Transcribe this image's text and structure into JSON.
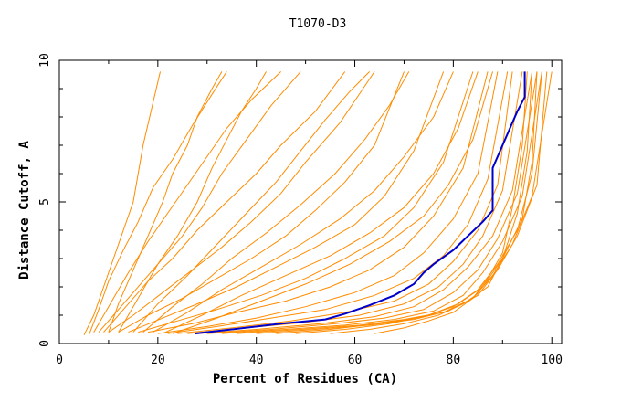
{
  "chart_data": {
    "type": "line",
    "title": "T1070-D3",
    "xlabel": "Percent of Residues (CA)",
    "ylabel": "Distance Cutoff, A",
    "xlim": [
      0,
      102
    ],
    "ylim": [
      0,
      10
    ],
    "x_ticks": [
      0,
      20,
      40,
      60,
      80,
      100
    ],
    "y_ticks": [
      0,
      5,
      10
    ],
    "grid": false,
    "legend": "none",
    "colors": {
      "models": "#ff8c00",
      "highlight": "#0000cc",
      "axes": "#000000"
    },
    "highlight_series": {
      "points": [
        [
          27.5,
          0.35
        ],
        [
          35,
          0.5
        ],
        [
          45,
          0.7
        ],
        [
          54,
          0.85
        ],
        [
          58,
          1.05
        ],
        [
          63,
          1.35
        ],
        [
          68,
          1.7
        ],
        [
          72,
          2.1
        ],
        [
          74,
          2.5
        ],
        [
          76,
          2.8
        ],
        [
          80,
          3.3
        ],
        [
          83,
          3.8
        ],
        [
          86,
          4.3
        ],
        [
          88,
          4.7
        ],
        [
          88,
          5.2
        ],
        [
          88,
          6.2
        ],
        [
          90,
          7.0
        ],
        [
          93,
          8.2
        ],
        [
          94.5,
          8.7
        ],
        [
          94.5,
          9.6
        ]
      ]
    },
    "model_series": [
      [
        [
          5,
          0.3
        ],
        [
          7,
          1.0
        ],
        [
          9,
          2.0
        ],
        [
          11,
          3.0
        ],
        [
          13,
          4.0
        ],
        [
          15,
          5.0
        ],
        [
          16,
          6.0
        ],
        [
          17,
          7.0
        ],
        [
          19,
          8.5
        ],
        [
          20.5,
          9.6
        ]
      ],
      [
        [
          6,
          0.3
        ],
        [
          8,
          1.2
        ],
        [
          10,
          2.2
        ],
        [
          13,
          3.3
        ],
        [
          16,
          4.3
        ],
        [
          19,
          5.5
        ],
        [
          23,
          6.5
        ],
        [
          27,
          7.7
        ],
        [
          31,
          8.8
        ],
        [
          34,
          9.6
        ]
      ],
      [
        [
          7,
          0.4
        ],
        [
          10,
          1.3
        ],
        [
          14,
          2.5
        ],
        [
          18,
          3.6
        ],
        [
          22,
          4.6
        ],
        [
          26,
          5.6
        ],
        [
          30,
          6.6
        ],
        [
          34,
          7.6
        ],
        [
          39,
          8.6
        ],
        [
          45,
          9.6
        ]
      ],
      [
        [
          8,
          0.4
        ],
        [
          11,
          1.0
        ],
        [
          15,
          1.8
        ],
        [
          20,
          2.8
        ],
        [
          25,
          3.8
        ],
        [
          29,
          4.8
        ],
        [
          33,
          6.0
        ],
        [
          38,
          7.2
        ],
        [
          43,
          8.4
        ],
        [
          49,
          9.6
        ]
      ],
      [
        [
          9,
          0.4
        ],
        [
          13,
          1.2
        ],
        [
          18,
          2.2
        ],
        [
          23,
          3.0
        ],
        [
          28,
          4.0
        ],
        [
          34,
          5.0
        ],
        [
          40,
          6.0
        ],
        [
          45,
          7.0
        ],
        [
          52,
          8.2
        ],
        [
          58,
          9.6
        ]
      ],
      [
        [
          10,
          0.4
        ],
        [
          15,
          1.0
        ],
        [
          21,
          1.8
        ],
        [
          27,
          2.6
        ],
        [
          33,
          3.4
        ],
        [
          39,
          4.3
        ],
        [
          45,
          5.3
        ],
        [
          50,
          6.4
        ],
        [
          57,
          7.8
        ],
        [
          64,
          9.6
        ]
      ],
      [
        [
          12,
          0.4
        ],
        [
          18,
          1.0
        ],
        [
          25,
          1.6
        ],
        [
          32,
          2.3
        ],
        [
          39,
          3.0
        ],
        [
          46,
          3.8
        ],
        [
          52,
          4.7
        ],
        [
          58,
          5.7
        ],
        [
          64,
          7.0
        ],
        [
          70,
          9.6
        ]
      ],
      [
        [
          14,
          0.4
        ],
        [
          21,
          0.9
        ],
        [
          28,
          1.4
        ],
        [
          36,
          2.0
        ],
        [
          44,
          2.7
        ],
        [
          52,
          3.4
        ],
        [
          60,
          4.2
        ],
        [
          66,
          5.2
        ],
        [
          72,
          6.8
        ],
        [
          78,
          9.6
        ]
      ],
      [
        [
          16,
          0.4
        ],
        [
          24,
          0.8
        ],
        [
          32,
          1.2
        ],
        [
          41,
          1.7
        ],
        [
          50,
          2.3
        ],
        [
          58,
          3.0
        ],
        [
          66,
          3.8
        ],
        [
          72,
          4.8
        ],
        [
          78,
          6.4
        ],
        [
          84,
          9.6
        ]
      ],
      [
        [
          18,
          0.4
        ],
        [
          27,
          0.7
        ],
        [
          36,
          1.1
        ],
        [
          46,
          1.5
        ],
        [
          55,
          2.0
        ],
        [
          63,
          2.6
        ],
        [
          70,
          3.4
        ],
        [
          76,
          4.5
        ],
        [
          82,
          6.2
        ],
        [
          87,
          9.6
        ]
      ],
      [
        [
          20,
          0.35
        ],
        [
          30,
          0.6
        ],
        [
          40,
          0.9
        ],
        [
          50,
          1.3
        ],
        [
          60,
          1.8
        ],
        [
          68,
          2.4
        ],
        [
          74,
          3.2
        ],
        [
          80,
          4.4
        ],
        [
          85,
          6.0
        ],
        [
          89,
          9.6
        ]
      ],
      [
        [
          22,
          0.35
        ],
        [
          32,
          0.6
        ],
        [
          43,
          0.9
        ],
        [
          54,
          1.2
        ],
        [
          64,
          1.7
        ],
        [
          72,
          2.3
        ],
        [
          78,
          3.1
        ],
        [
          83,
          4.2
        ],
        [
          87,
          5.8
        ],
        [
          91,
          9.6
        ]
      ],
      [
        [
          24,
          0.35
        ],
        [
          35,
          0.55
        ],
        [
          47,
          0.8
        ],
        [
          58,
          1.1
        ],
        [
          68,
          1.5
        ],
        [
          75,
          2.1
        ],
        [
          80,
          2.9
        ],
        [
          85,
          4.0
        ],
        [
          89,
          5.6
        ],
        [
          92,
          9.6
        ]
      ],
      [
        [
          26,
          0.35
        ],
        [
          38,
          0.55
        ],
        [
          50,
          0.75
        ],
        [
          61,
          1.0
        ],
        [
          70,
          1.4
        ],
        [
          77,
          2.0
        ],
        [
          82,
          2.8
        ],
        [
          86,
          3.8
        ],
        [
          90,
          5.4
        ],
        [
          94,
          9.6
        ]
      ],
      [
        [
          28,
          0.35
        ],
        [
          40,
          0.5
        ],
        [
          53,
          0.7
        ],
        [
          64,
          0.95
        ],
        [
          72,
          1.3
        ],
        [
          78,
          1.9
        ],
        [
          83,
          2.7
        ],
        [
          88,
          3.8
        ],
        [
          92,
          5.4
        ],
        [
          96,
          9.6
        ]
      ],
      [
        [
          30,
          0.35
        ],
        [
          43,
          0.5
        ],
        [
          56,
          0.7
        ],
        [
          66,
          0.9
        ],
        [
          74,
          1.2
        ],
        [
          80,
          1.8
        ],
        [
          85,
          2.6
        ],
        [
          89,
          3.7
        ],
        [
          93,
          5.3
        ],
        [
          97,
          9.6
        ]
      ],
      [
        [
          33,
          0.35
        ],
        [
          46,
          0.5
        ],
        [
          58,
          0.65
        ],
        [
          68,
          0.85
        ],
        [
          76,
          1.15
        ],
        [
          82,
          1.7
        ],
        [
          86,
          2.5
        ],
        [
          90,
          3.6
        ],
        [
          94,
          5.2
        ],
        [
          98,
          9.6
        ]
      ],
      [
        [
          36,
          0.35
        ],
        [
          49,
          0.5
        ],
        [
          61,
          0.65
        ],
        [
          70,
          0.85
        ],
        [
          78,
          1.1
        ],
        [
          84,
          1.6
        ],
        [
          88,
          2.4
        ],
        [
          92,
          3.5
        ],
        [
          96,
          5.2
        ],
        [
          100,
          9.6
        ]
      ],
      [
        [
          40,
          0.35
        ],
        [
          52,
          0.5
        ],
        [
          63,
          0.65
        ],
        [
          72,
          0.85
        ],
        [
          79,
          1.15
        ],
        [
          85,
          1.7
        ],
        [
          89,
          2.6
        ],
        [
          93,
          3.8
        ],
        [
          97,
          5.6
        ],
        [
          99,
          9.6
        ]
      ],
      [
        [
          44,
          0.35
        ],
        [
          55,
          0.5
        ],
        [
          65,
          0.7
        ],
        [
          74,
          0.95
        ],
        [
          80,
          1.3
        ],
        [
          85,
          1.9
        ],
        [
          89,
          2.8
        ],
        [
          93,
          4.0
        ],
        [
          96,
          6.0
        ],
        [
          98,
          9.6
        ]
      ],
      [
        [
          48,
          0.35
        ],
        [
          58,
          0.5
        ],
        [
          67,
          0.7
        ],
        [
          75,
          1.0
        ],
        [
          81,
          1.4
        ],
        [
          86,
          2.0
        ],
        [
          90,
          3.0
        ],
        [
          94,
          4.4
        ],
        [
          96,
          6.4
        ],
        [
          97,
          9.6
        ]
      ],
      [
        [
          55,
          0.35
        ],
        [
          63,
          0.5
        ],
        [
          70,
          0.7
        ],
        [
          77,
          1.0
        ],
        [
          82,
          1.4
        ],
        [
          87,
          2.0
        ],
        [
          90,
          3.0
        ],
        [
          93,
          4.6
        ],
        [
          95,
          6.8
        ],
        [
          96,
          9.6
        ]
      ],
      [
        [
          64,
          0.35
        ],
        [
          70,
          0.55
        ],
        [
          75,
          0.8
        ],
        [
          80,
          1.1
        ],
        [
          84,
          1.6
        ],
        [
          87,
          2.3
        ],
        [
          90,
          3.2
        ],
        [
          92,
          4.8
        ],
        [
          94,
          7.0
        ],
        [
          95,
          9.6
        ]
      ],
      [
        [
          10,
          0.4
        ],
        [
          12,
          1.4
        ],
        [
          15,
          2.6
        ],
        [
          18,
          3.8
        ],
        [
          21,
          5.0
        ],
        [
          23,
          6.0
        ],
        [
          26,
          7.0
        ],
        [
          28,
          8.0
        ],
        [
          31,
          9.0
        ],
        [
          33,
          9.6
        ]
      ],
      [
        [
          12,
          0.4
        ],
        [
          16,
          1.6
        ],
        [
          20,
          2.8
        ],
        [
          24,
          3.8
        ],
        [
          28,
          5.0
        ],
        [
          31,
          6.2
        ],
        [
          34,
          7.2
        ],
        [
          37,
          8.2
        ],
        [
          40,
          9.0
        ],
        [
          42,
          9.6
        ]
      ],
      [
        [
          15,
          0.4
        ],
        [
          20,
          1.4
        ],
        [
          26,
          2.4
        ],
        [
          32,
          3.5
        ],
        [
          38,
          4.6
        ],
        [
          44,
          5.7
        ],
        [
          49,
          6.8
        ],
        [
          54,
          7.9
        ],
        [
          59,
          8.9
        ],
        [
          63,
          9.6
        ]
      ],
      [
        [
          17,
          0.4
        ],
        [
          23,
          1.3
        ],
        [
          29,
          2.1
        ],
        [
          35,
          3.0
        ],
        [
          42,
          3.9
        ],
        [
          49,
          4.9
        ],
        [
          56,
          6.0
        ],
        [
          62,
          7.2
        ],
        [
          67,
          8.4
        ],
        [
          71,
          9.6
        ]
      ],
      [
        [
          19,
          0.4
        ],
        [
          26,
          1.1
        ],
        [
          33,
          1.9
        ],
        [
          41,
          2.7
        ],
        [
          49,
          3.5
        ],
        [
          57,
          4.4
        ],
        [
          64,
          5.4
        ],
        [
          70,
          6.6
        ],
        [
          76,
          8.0
        ],
        [
          80,
          9.6
        ]
      ],
      [
        [
          21,
          0.35
        ],
        [
          29,
          1.0
        ],
        [
          37,
          1.7
        ],
        [
          46,
          2.4
        ],
        [
          55,
          3.1
        ],
        [
          63,
          3.9
        ],
        [
          70,
          4.8
        ],
        [
          76,
          6.0
        ],
        [
          81,
          7.6
        ],
        [
          85,
          9.6
        ]
      ],
      [
        [
          23,
          0.35
        ],
        [
          32,
          0.9
        ],
        [
          41,
          1.5
        ],
        [
          50,
          2.1
        ],
        [
          59,
          2.8
        ],
        [
          67,
          3.6
        ],
        [
          74,
          4.5
        ],
        [
          79,
          5.6
        ],
        [
          84,
          7.2
        ],
        [
          88,
          9.6
        ]
      ]
    ]
  }
}
